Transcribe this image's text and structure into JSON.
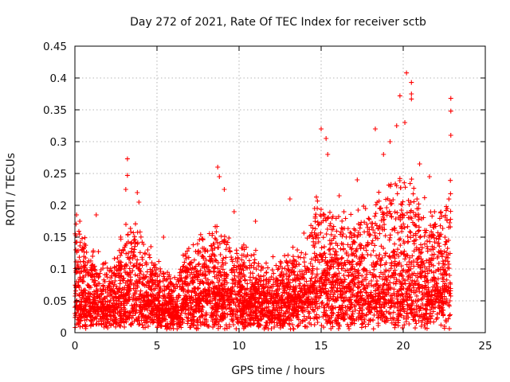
{
  "chart_data": {
    "type": "scatter",
    "title": "Day 272 of 2021, Rate Of TEC Index for receiver sctb",
    "xlabel": "GPS time / hours",
    "ylabel": "ROTI / TECUs",
    "xlim": [
      0,
      25
    ],
    "ylim": [
      0,
      0.45
    ],
    "grid": true,
    "marker": "plus",
    "color": "#ff0000",
    "x_ticks": [
      "0",
      "5",
      "10",
      "15",
      "20",
      "25"
    ],
    "y_ticks": [
      "0",
      "0.05",
      "0.1",
      "0.15",
      "0.2",
      "0.25",
      "0.3",
      "0.35",
      "0.4",
      "0.45"
    ],
    "series": [
      {
        "name": "ROTI",
        "time_span_hours": [
          0,
          22.9
        ],
        "points_per_hour": 200,
        "profile": [
          {
            "t": 0.0,
            "base": 0.04,
            "spread": 0.14
          },
          {
            "t": 1.0,
            "base": 0.035,
            "spread": 0.1
          },
          {
            "t": 2.0,
            "base": 0.03,
            "spread": 0.07
          },
          {
            "t": 3.2,
            "base": 0.05,
            "spread": 0.12
          },
          {
            "t": 4.0,
            "base": 0.045,
            "spread": 0.12
          },
          {
            "t": 5.0,
            "base": 0.03,
            "spread": 0.08
          },
          {
            "t": 6.0,
            "base": 0.02,
            "spread": 0.06
          },
          {
            "t": 7.0,
            "base": 0.04,
            "spread": 0.1
          },
          {
            "t": 8.5,
            "base": 0.05,
            "spread": 0.12
          },
          {
            "t": 9.5,
            "base": 0.05,
            "spread": 0.1
          },
          {
            "t": 11.0,
            "base": 0.04,
            "spread": 0.08
          },
          {
            "t": 12.5,
            "base": 0.04,
            "spread": 0.07
          },
          {
            "t": 14.0,
            "base": 0.05,
            "spread": 0.1
          },
          {
            "t": 15.0,
            "base": 0.07,
            "spread": 0.15
          },
          {
            "t": 16.0,
            "base": 0.06,
            "spread": 0.12
          },
          {
            "t": 17.0,
            "base": 0.05,
            "spread": 0.14
          },
          {
            "t": 18.5,
            "base": 0.04,
            "spread": 0.18
          },
          {
            "t": 20.0,
            "base": 0.06,
            "spread": 0.2
          },
          {
            "t": 21.0,
            "base": 0.06,
            "spread": 0.17
          },
          {
            "t": 22.0,
            "base": 0.05,
            "spread": 0.14
          },
          {
            "t": 22.9,
            "base": 0.06,
            "spread": 0.18
          }
        ],
        "peaks": [
          {
            "x": 0.1,
            "y": 0.185
          },
          {
            "x": 0.3,
            "y": 0.175
          },
          {
            "x": 1.3,
            "y": 0.185
          },
          {
            "x": 3.2,
            "y": 0.273
          },
          {
            "x": 3.2,
            "y": 0.247
          },
          {
            "x": 3.1,
            "y": 0.225
          },
          {
            "x": 3.8,
            "y": 0.22
          },
          {
            "x": 3.9,
            "y": 0.205
          },
          {
            "x": 5.4,
            "y": 0.15
          },
          {
            "x": 8.7,
            "y": 0.26
          },
          {
            "x": 8.8,
            "y": 0.245
          },
          {
            "x": 9.1,
            "y": 0.225
          },
          {
            "x": 9.7,
            "y": 0.19
          },
          {
            "x": 11.0,
            "y": 0.175
          },
          {
            "x": 13.1,
            "y": 0.21
          },
          {
            "x": 14.6,
            "y": 0.195
          },
          {
            "x": 15.0,
            "y": 0.32
          },
          {
            "x": 15.3,
            "y": 0.305
          },
          {
            "x": 15.4,
            "y": 0.28
          },
          {
            "x": 16.1,
            "y": 0.215
          },
          {
            "x": 17.2,
            "y": 0.24
          },
          {
            "x": 18.3,
            "y": 0.32
          },
          {
            "x": 18.8,
            "y": 0.28
          },
          {
            "x": 19.2,
            "y": 0.3
          },
          {
            "x": 19.6,
            "y": 0.325
          },
          {
            "x": 19.8,
            "y": 0.372
          },
          {
            "x": 20.1,
            "y": 0.33
          },
          {
            "x": 20.2,
            "y": 0.408
          },
          {
            "x": 20.5,
            "y": 0.393
          },
          {
            "x": 20.5,
            "y": 0.375
          },
          {
            "x": 20.5,
            "y": 0.367
          },
          {
            "x": 21.0,
            "y": 0.265
          },
          {
            "x": 21.6,
            "y": 0.245
          },
          {
            "x": 22.9,
            "y": 0.368
          },
          {
            "x": 22.9,
            "y": 0.348
          },
          {
            "x": 22.9,
            "y": 0.31
          }
        ]
      }
    ]
  }
}
